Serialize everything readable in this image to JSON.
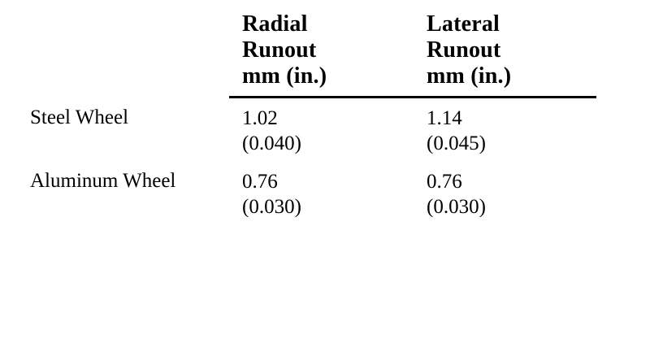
{
  "table": {
    "headers": {
      "radial": [
        "Radial",
        "Runout",
        "mm (in.)"
      ],
      "lateral": [
        "Lateral",
        "Runout",
        "mm (in.)"
      ]
    },
    "rows": [
      {
        "label": "Steel Wheel",
        "radial": {
          "mm": "1.02",
          "in": "(0.040)"
        },
        "lateral": {
          "mm": "1.14",
          "in": "(0.045)"
        }
      },
      {
        "label": "Aluminum Wheel",
        "radial": {
          "mm": "0.76",
          "in": "(0.030)"
        },
        "lateral": {
          "mm": "0.76",
          "in": "(0.030)"
        }
      }
    ]
  }
}
